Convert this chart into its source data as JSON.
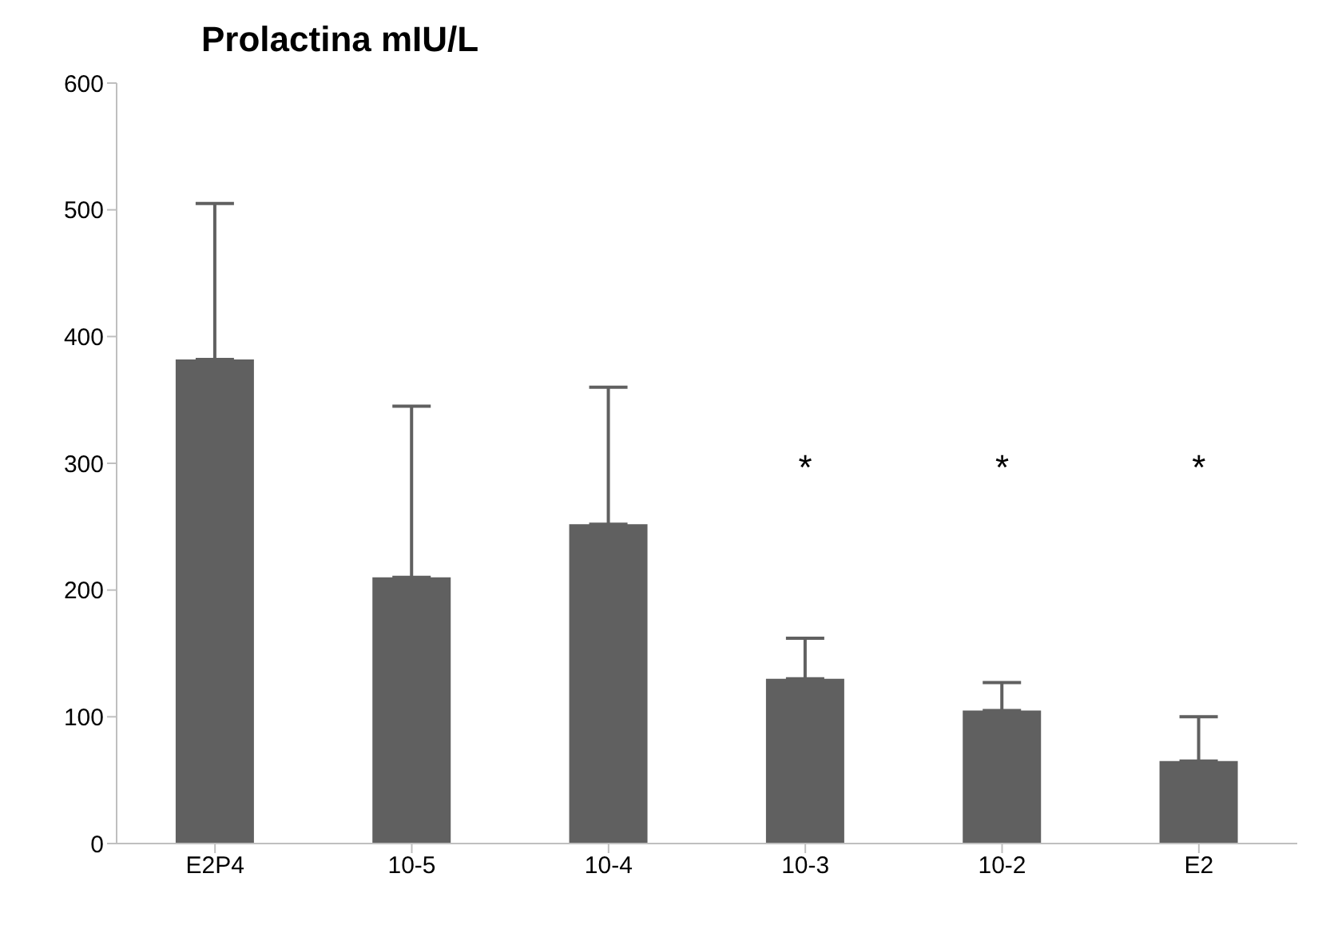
{
  "chart_data": {
    "type": "bar",
    "title": "Prolactina mIU/L",
    "categories": [
      "E2P4",
      "10-5",
      "10-4",
      "10-3",
      "10-2",
      "E2"
    ],
    "values": [
      382,
      210,
      252,
      130,
      105,
      65
    ],
    "errors": [
      [
        382,
        505
      ],
      [
        210,
        345
      ],
      [
        252,
        360
      ],
      [
        130,
        162
      ],
      [
        105,
        127
      ],
      [
        65,
        100
      ]
    ],
    "color": "#606060",
    "ylim": [
      0,
      600
    ],
    "yticks": [
      0,
      100,
      200,
      300,
      400,
      500,
      600
    ],
    "grid": false,
    "legend": false,
    "annotations": [
      "*",
      "*",
      "*"
    ]
  }
}
